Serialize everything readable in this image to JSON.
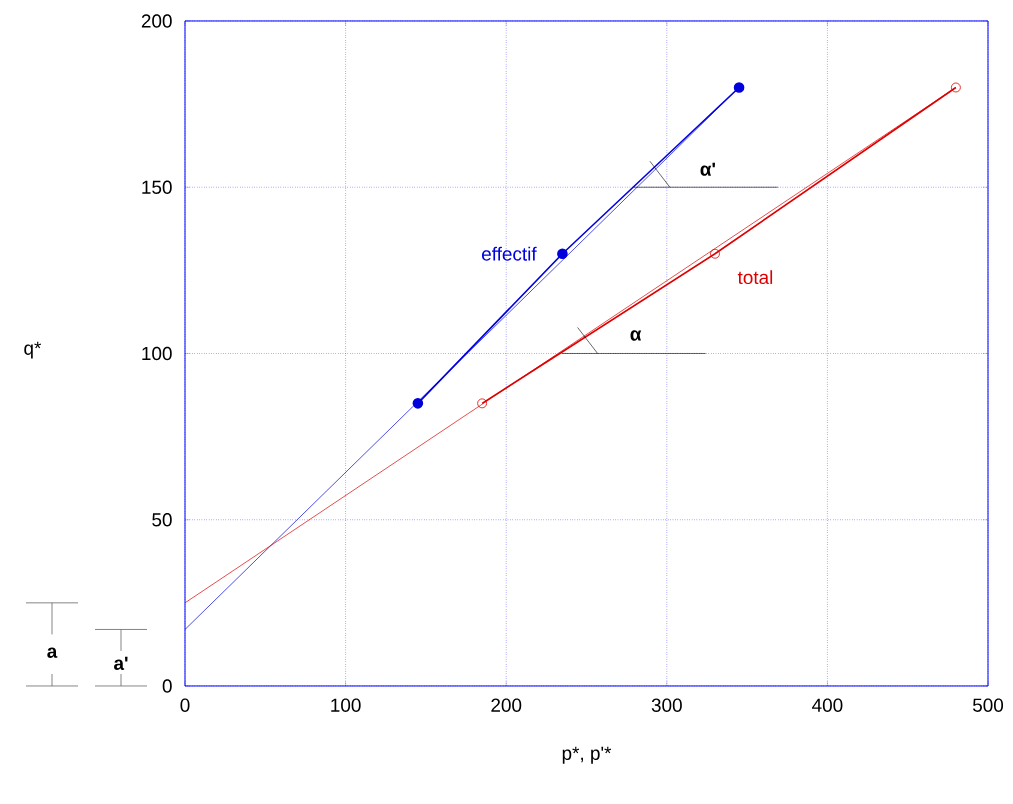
{
  "chart_data": {
    "type": "line",
    "xlabel": "p*, p'*",
    "xlim": [
      0,
      500
    ],
    "ylim": [
      0,
      200
    ],
    "xticks": [
      0,
      100,
      200,
      300,
      400,
      500
    ],
    "yticks": [
      0,
      50,
      100,
      150,
      200
    ],
    "grid": true,
    "series": [
      {
        "color": "#0000dd",
        "x": [
          0,
          345
        ],
        "values": [
          17,
          180
        ]
      },
      {
        "color": "#dd0000",
        "x": [
          0,
          480
        ],
        "values": [
          25,
          180
        ]
      },
      {
        "name": "effectif",
        "marker": "circle",
        "color": "#0000dd",
        "x": [
          145,
          235,
          345
        ],
        "values": [
          85,
          130,
          180
        ]
      },
      {
        "name": "total",
        "marker": "circle",
        "color": "#dd0000",
        "x": [
          185,
          330,
          480
        ],
        "values": [
          85,
          130,
          180
        ]
      }
    ],
    "annotations": [
      "α",
      "α'",
      "a",
      "a'",
      "q*"
    ]
  }
}
